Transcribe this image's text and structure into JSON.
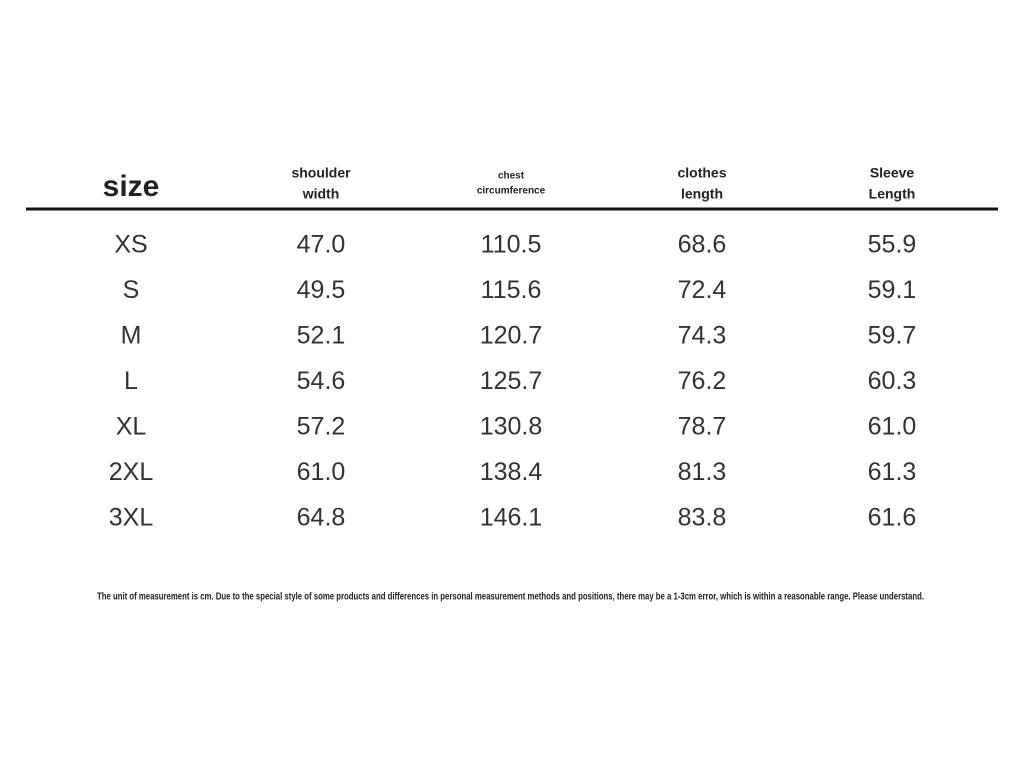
{
  "table": {
    "header": [
      [
        "size"
      ],
      [
        "shoulder",
        "width"
      ],
      [
        "chest",
        "circumference"
      ],
      [
        "clothes",
        "length"
      ],
      [
        "Sleeve",
        "Length"
      ]
    ],
    "rows": [
      [
        "XS",
        "47.0",
        "110.5",
        "68.6",
        "55.9"
      ],
      [
        "S",
        "49.5",
        "115.6",
        "72.4",
        "59.1"
      ],
      [
        "M",
        "52.1",
        "120.7",
        "74.3",
        "59.7"
      ],
      [
        "L",
        "54.6",
        "125.7",
        "76.2",
        "60.3"
      ],
      [
        "XL",
        "57.2",
        "130.8",
        "78.7",
        "61.0"
      ],
      [
        "2XL",
        "61.0",
        "138.4",
        "81.3",
        "61.3"
      ],
      [
        "3XL",
        "64.8",
        "146.1",
        "83.8",
        "61.6"
      ]
    ]
  },
  "note": "The unit of measurement is cm. Due to the special style of some products and differences in personal measurement methods and positions, there may be a 1-3cm error, which is within a reasonable range. Please understand."
}
